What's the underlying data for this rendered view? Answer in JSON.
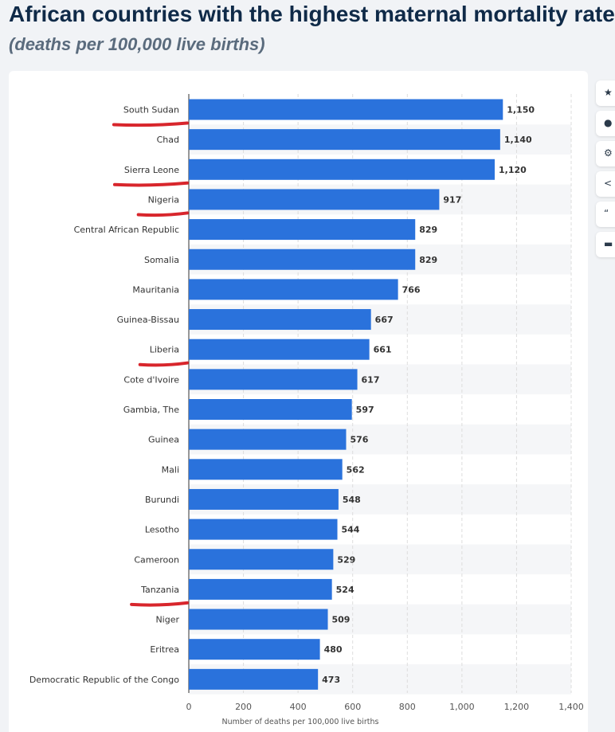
{
  "header": {
    "title": "African countries with the highest maternal mortality rate",
    "subtitle": "(deaths per 100,000 live births)"
  },
  "toolbar": {
    "items": [
      {
        "icon": "star-icon",
        "glyph": "★"
      },
      {
        "icon": "bell-icon",
        "glyph": "●"
      },
      {
        "icon": "gear-icon",
        "glyph": "⚙"
      },
      {
        "icon": "share-icon",
        "glyph": "<"
      },
      {
        "icon": "quote-icon",
        "glyph": "“"
      },
      {
        "icon": "print-icon",
        "glyph": "▬"
      }
    ]
  },
  "chart_data": {
    "type": "bar",
    "orientation": "horizontal",
    "categories": [
      "South Sudan",
      "Chad",
      "Sierra Leone",
      "Nigeria",
      "Central African Republic",
      "Somalia",
      "Mauritania",
      "Guinea-Bissau",
      "Liberia",
      "Cote d'Ivoire",
      "Gambia, The",
      "Guinea",
      "Mali",
      "Burundi",
      "Lesotho",
      "Cameroon",
      "Tanzania",
      "Niger",
      "Eritrea",
      "Democratic Republic of the Congo"
    ],
    "values": [
      1150,
      1140,
      1120,
      917,
      829,
      829,
      766,
      667,
      661,
      617,
      597,
      576,
      562,
      548,
      544,
      529,
      524,
      509,
      480,
      473
    ],
    "value_labels": [
      "1,150",
      "1,140",
      "1,120",
      "917",
      "829",
      "829",
      "766",
      "667",
      "661",
      "617",
      "597",
      "576",
      "562",
      "548",
      "544",
      "529",
      "524",
      "509",
      "480",
      "473"
    ],
    "xlabel": "Number of deaths per 100,000 live births",
    "ylabel": "",
    "xlim": [
      0,
      1400
    ],
    "xticks": [
      0,
      200,
      400,
      600,
      800,
      1000,
      1200,
      1400
    ],
    "xtick_labels": [
      "0",
      "200",
      "400",
      "600",
      "800",
      "1,000",
      "1,200",
      "1,400"
    ],
    "grid": true,
    "alternating_row_shading": true,
    "highlighted_categories": [
      "South Sudan",
      "Sierra Leone",
      "Nigeria",
      "Liberia",
      "Tanzania"
    ],
    "colors": {
      "bar": "#2a72dc",
      "highlight_underline": "#d8262c",
      "row_stripe": "#f5f6f8",
      "grid": "#dddddd"
    }
  }
}
